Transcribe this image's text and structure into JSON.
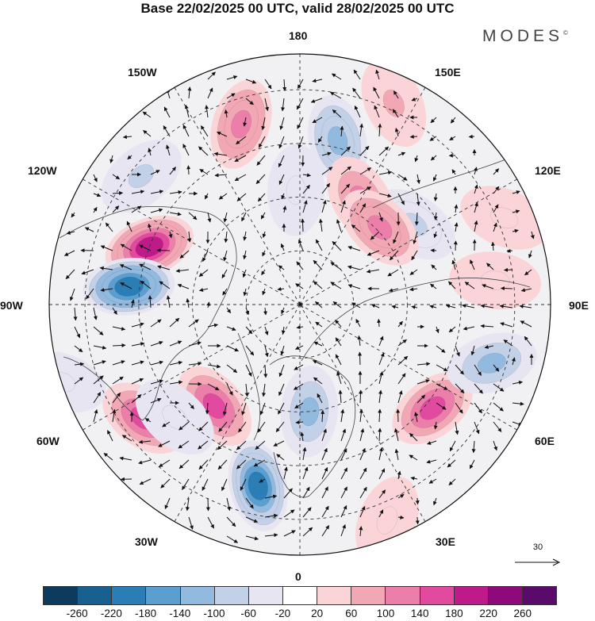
{
  "title": "Base 22/02/2025 00 UTC, valid 28/02/2025 00 UTC",
  "brand": {
    "name": "MODES",
    "mark": "©"
  },
  "longitude_labels": [
    "180",
    "150E",
    "120E",
    "90E",
    "60E",
    "30E",
    "0",
    "30W",
    "60W",
    "90W",
    "120W",
    "150W"
  ],
  "reference_vector": {
    "label": "30"
  },
  "colorbar": {
    "colors": [
      "#0d3b5e",
      "#17608f",
      "#2b7db5",
      "#5a9fd0",
      "#92b9de",
      "#c2d1e8",
      "#e6e5f1",
      "#ffffff",
      "#fad4d6",
      "#f2a7b5",
      "#ec7eaa",
      "#e14a9f",
      "#bf1a8a",
      "#8e0a7a",
      "#5a0a6a"
    ],
    "ticks": [
      "-260",
      "-220",
      "-180",
      "-140",
      "-100",
      "-60",
      "-20",
      "20",
      "60",
      "100",
      "140",
      "180",
      "220",
      "260"
    ]
  },
  "anomaly_centers": [
    {
      "lon": 167,
      "lat": 43,
      "value": -120
    },
    {
      "lon": -162,
      "lat": 37,
      "value": 130
    },
    {
      "lon": -129,
      "lat": 33,
      "value": -70
    },
    {
      "lon": -111,
      "lat": 45,
      "value": 200
    },
    {
      "lon": -96,
      "lat": 42,
      "value": -210
    },
    {
      "lon": -54,
      "lat": 36,
      "value": 150
    },
    {
      "lon": -40,
      "lat": 53,
      "value": 150
    },
    {
      "lon": -48,
      "lat": 43,
      "value": -50
    },
    {
      "lon": -13,
      "lat": 38,
      "value": -200
    },
    {
      "lon": 5,
      "lat": 60,
      "value": -110
    },
    {
      "lon": 52,
      "lat": 43,
      "value": 150
    },
    {
      "lon": 73,
      "lat": 34,
      "value": -110
    },
    {
      "lon": 125,
      "lat": 51,
      "value": -80
    },
    {
      "lon": 150,
      "lat": 56,
      "value": 110
    },
    {
      "lon": 134,
      "lat": 59,
      "value": 130
    },
    {
      "lon": 97,
      "lat": 35,
      "value": 60
    },
    {
      "lon": 155,
      "lat": 28,
      "value": 70
    },
    {
      "lon": 113,
      "lat": 28,
      "value": 50
    },
    {
      "lon": -178,
      "lat": 58,
      "value": -40
    },
    {
      "lon": 22,
      "lat": 25,
      "value": 60
    },
    {
      "lon": -72,
      "lat": 20,
      "value": -40
    }
  ]
}
